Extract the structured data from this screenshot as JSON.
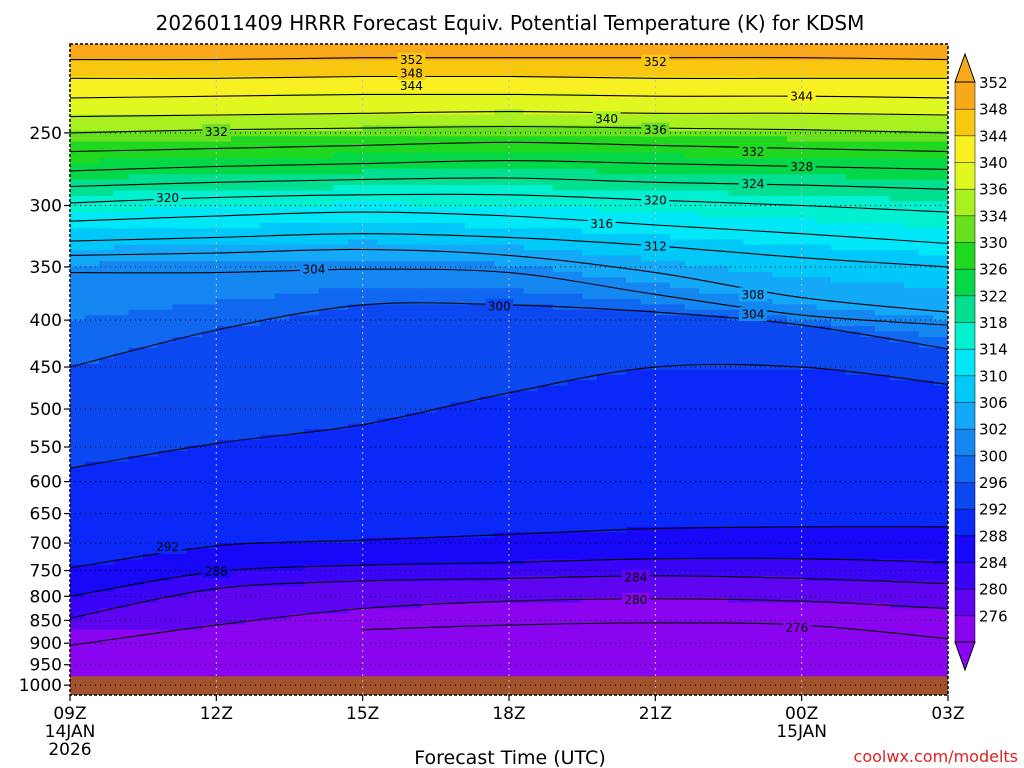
{
  "chart_data": {
    "type": "heatmap",
    "title": "2026011409 HRRR Forecast Equiv. Potential Temperature (K) for KDSM",
    "xlabel": "Forecast Time (UTC)",
    "ylabel": "",
    "credit": "coolwx.com/modelts",
    "x_axis": {
      "range_hours": [
        0,
        18
      ],
      "ticks": [
        {
          "hour": 0,
          "label": "09Z",
          "sub": [
            "14JAN",
            "2026"
          ]
        },
        {
          "hour": 3,
          "label": "12Z",
          "sub": []
        },
        {
          "hour": 6,
          "label": "15Z",
          "sub": []
        },
        {
          "hour": 9,
          "label": "18Z",
          "sub": []
        },
        {
          "hour": 12,
          "label": "21Z",
          "sub": []
        },
        {
          "hour": 15,
          "label": "00Z",
          "sub": [
            "15JAN"
          ]
        },
        {
          "hour": 18,
          "label": "03Z",
          "sub": []
        }
      ]
    },
    "y_axis": {
      "scale": "log-pressure",
      "units": "hPa",
      "range": [
        1025,
        200
      ],
      "ticks": [
        250,
        300,
        350,
        400,
        450,
        500,
        550,
        600,
        650,
        700,
        750,
        800,
        850,
        900,
        950,
        1000
      ],
      "ground_top_hPa": 978
    },
    "grid": true,
    "colorbar": {
      "levels": [
        276,
        280,
        284,
        288,
        292,
        296,
        300,
        302,
        306,
        310,
        314,
        318,
        322,
        326,
        330,
        334,
        336,
        340,
        344,
        348,
        352
      ],
      "colors": [
        "#8a04f0",
        "#5e04f0",
        "#3a04f8",
        "#1808f8",
        "#0a28f8",
        "#0c48f0",
        "#1068f0",
        "#1488f0",
        "#14a8f8",
        "#00c8f8",
        "#00e8f8",
        "#00f0d0",
        "#00e090",
        "#04d848",
        "#20d820",
        "#68e020",
        "#a8f020",
        "#e0f820",
        "#f8f020",
        "#f8c810",
        "#f8a818"
      ],
      "extend": "both"
    },
    "contour_interval_K": 4,
    "contours": [
      {
        "value": 276,
        "x_hours": [
          6,
          9,
          12,
          15,
          18
        ],
        "pressure_hPa": [
          870,
          860,
          855,
          860,
          890
        ]
      },
      {
        "value": 280,
        "x_hours": [
          0,
          3,
          6,
          9,
          12,
          15,
          18
        ],
        "pressure_hPa": [
          905,
          860,
          825,
          810,
          805,
          810,
          825
        ]
      },
      {
        "value": 284,
        "x_hours": [
          0,
          3,
          6,
          9,
          12,
          15,
          18
        ],
        "pressure_hPa": [
          845,
          785,
          770,
          765,
          760,
          765,
          775
        ]
      },
      {
        "value": 288,
        "x_hours": [
          0,
          3,
          6,
          9,
          12,
          15,
          18
        ],
        "pressure_hPa": [
          800,
          752,
          740,
          735,
          728,
          728,
          735
        ]
      },
      {
        "value": 292,
        "x_hours": [
          0,
          3,
          6,
          9,
          12,
          15,
          18
        ],
        "pressure_hPa": [
          745,
          705,
          695,
          685,
          675,
          672,
          672
        ]
      },
      {
        "value": 296,
        "x_hours": [
          0,
          3,
          6,
          9,
          12,
          15,
          18
        ],
        "pressure_hPa": [
          580,
          545,
          520,
          480,
          450,
          450,
          470
        ]
      },
      {
        "value": 300,
        "x_hours": [
          0,
          3,
          6,
          9,
          12,
          15,
          18
        ],
        "pressure_hPa": [
          450,
          410,
          385,
          385,
          392,
          405,
          430
        ]
      },
      {
        "value": 304,
        "x_hours": [
          0,
          3,
          6,
          9,
          12,
          15,
          18
        ],
        "pressure_hPa": [
          355,
          355,
          352,
          355,
          375,
          395,
          405
        ]
      },
      {
        "value": 308,
        "x_hours": [
          0,
          3,
          6,
          9,
          12,
          15,
          18
        ],
        "pressure_hPa": [
          340,
          338,
          335,
          340,
          355,
          378,
          392
        ]
      },
      {
        "value": 312,
        "x_hours": [
          0,
          3,
          6,
          9,
          12,
          15,
          18
        ],
        "pressure_hPa": [
          328,
          325,
          322,
          325,
          332,
          342,
          350
        ]
      },
      {
        "value": 316,
        "x_hours": [
          0,
          3,
          6,
          9,
          12,
          15,
          18
        ],
        "pressure_hPa": [
          312,
          308,
          305,
          308,
          315,
          322,
          330
        ]
      },
      {
        "value": 320,
        "x_hours": [
          0,
          3,
          6,
          9,
          12,
          15,
          18
        ],
        "pressure_hPa": [
          298,
          294,
          292,
          292,
          296,
          300,
          305
        ]
      },
      {
        "value": 324,
        "x_hours": [
          0,
          3,
          6,
          9,
          12,
          15,
          18
        ],
        "pressure_hPa": [
          286,
          283,
          281,
          280,
          283,
          285,
          288
        ]
      },
      {
        "value": 328,
        "x_hours": [
          0,
          3,
          6,
          9,
          12,
          15,
          18
        ],
        "pressure_hPa": [
          275,
          272,
          270,
          268,
          270,
          272,
          274
        ]
      },
      {
        "value": 332,
        "x_hours": [
          0,
          3,
          6,
          9,
          12,
          15,
          18
        ],
        "pressure_hPa": [
          262,
          260,
          258,
          256,
          258,
          260,
          262
        ]
      },
      {
        "value": 336,
        "x_hours": [
          0,
          3,
          6,
          9,
          12,
          15,
          18
        ],
        "pressure_hPa": [
          250,
          248,
          247,
          246,
          247,
          248,
          250
        ]
      },
      {
        "value": 340,
        "x_hours": [
          0,
          3,
          6,
          9,
          12,
          15,
          18
        ],
        "pressure_hPa": [
          240,
          239,
          238,
          237,
          238,
          238,
          239
        ]
      },
      {
        "value": 344,
        "x_hours": [
          0,
          3,
          6,
          9,
          12,
          15,
          18
        ],
        "pressure_hPa": [
          229,
          228,
          227,
          227,
          228,
          228,
          229
        ]
      },
      {
        "value": 348,
        "x_hours": [
          0,
          3,
          6,
          9,
          12,
          15,
          18
        ],
        "pressure_hPa": [
          218,
          218,
          217,
          217,
          218,
          218,
          218
        ]
      },
      {
        "value": 352,
        "x_hours": [
          0,
          3,
          6,
          9,
          12,
          15,
          18
        ],
        "pressure_hPa": [
          208,
          208,
          207,
          207,
          207,
          207,
          208
        ]
      }
    ],
    "contour_labels": [
      {
        "text": "276",
        "hour": 14.9,
        "pressure_hPa": 865
      },
      {
        "text": "280",
        "hour": 11.6,
        "pressure_hPa": 807
      },
      {
        "text": "284",
        "hour": 11.6,
        "pressure_hPa": 762
      },
      {
        "text": "288",
        "hour": 3.0,
        "pressure_hPa": 751
      },
      {
        "text": "292",
        "hour": 2.0,
        "pressure_hPa": 706
      },
      {
        "text": "300",
        "hour": 8.8,
        "pressure_hPa": 386
      },
      {
        "text": "304",
        "hour": 5.0,
        "pressure_hPa": 352
      },
      {
        "text": "304",
        "hour": 14.0,
        "pressure_hPa": 394
      },
      {
        "text": "308",
        "hour": 14.0,
        "pressure_hPa": 375
      },
      {
        "text": "312",
        "hour": 12.0,
        "pressure_hPa": 332
      },
      {
        "text": "316",
        "hour": 10.9,
        "pressure_hPa": 314
      },
      {
        "text": "320",
        "hour": 2.0,
        "pressure_hPa": 294
      },
      {
        "text": "320",
        "hour": 12.0,
        "pressure_hPa": 296
      },
      {
        "text": "324",
        "hour": 14.0,
        "pressure_hPa": 284
      },
      {
        "text": "328",
        "hour": 15.0,
        "pressure_hPa": 272
      },
      {
        "text": "332",
        "hour": 3.0,
        "pressure_hPa": 249
      },
      {
        "text": "332",
        "hour": 14.0,
        "pressure_hPa": 262
      },
      {
        "text": "336",
        "hour": 12.0,
        "pressure_hPa": 248
      },
      {
        "text": "340",
        "hour": 11.0,
        "pressure_hPa": 241
      },
      {
        "text": "344",
        "hour": 7.0,
        "pressure_hPa": 222
      },
      {
        "text": "344",
        "hour": 15.0,
        "pressure_hPa": 228
      },
      {
        "text": "348",
        "hour": 7.0,
        "pressure_hPa": 215
      },
      {
        "text": "352",
        "hour": 7.0,
        "pressure_hPa": 208
      },
      {
        "text": "352",
        "hour": 12.0,
        "pressure_hPa": 209
      }
    ]
  }
}
